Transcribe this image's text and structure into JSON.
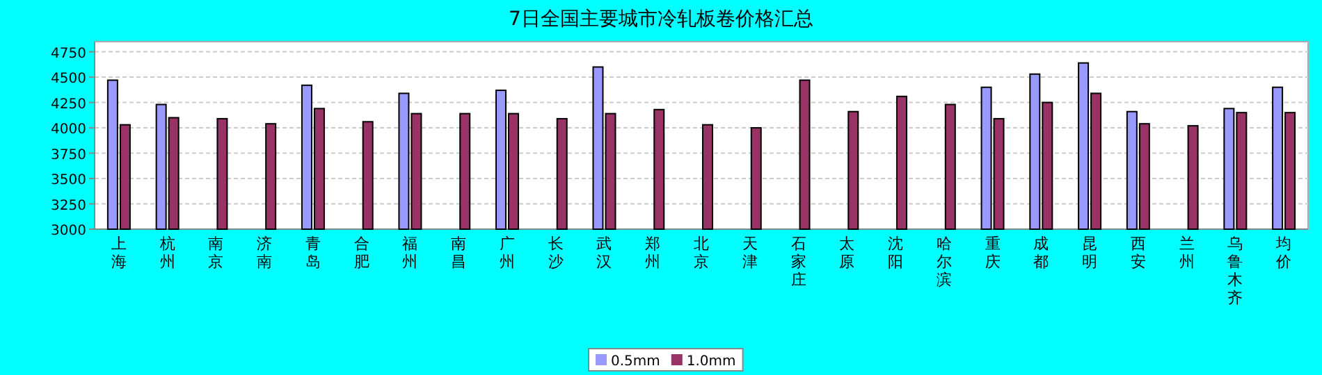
{
  "chart_data": {
    "type": "bar",
    "title": "7日全国主要城市冷轧板卷价格汇总",
    "categories": [
      "上海",
      "杭州",
      "南京",
      "济南",
      "青岛",
      "合肥",
      "福州",
      "南昌",
      "广州",
      "长沙",
      "武汉",
      "郑州",
      "北京",
      "天津",
      "石家庄",
      "太原",
      "沈阳",
      "哈尔滨",
      "重庆",
      "成都",
      "昆明",
      "西安",
      "兰州",
      "乌鲁木齐",
      "均价"
    ],
    "series": [
      {
        "name": "0.5mm",
        "color": "#9999ff",
        "values": [
          4470,
          4230,
          null,
          null,
          4420,
          null,
          4340,
          null,
          4370,
          null,
          4600,
          null,
          null,
          null,
          null,
          null,
          null,
          null,
          4400,
          4530,
          4640,
          4160,
          null,
          4190,
          4400
        ]
      },
      {
        "name": "1.0mm",
        "color": "#993366",
        "values": [
          4030,
          4100,
          4090,
          4040,
          4190,
          4060,
          4140,
          4140,
          4140,
          4090,
          4140,
          4180,
          4030,
          4000,
          4470,
          4160,
          4310,
          4230,
          4090,
          4250,
          4340,
          4040,
          4020,
          4150,
          4150
        ]
      }
    ],
    "ylim": [
      3000,
      4850
    ],
    "yticks": [
      3000,
      3250,
      3500,
      3750,
      4000,
      4250,
      4500,
      4750
    ],
    "grid": "y",
    "legend": "bottom"
  }
}
